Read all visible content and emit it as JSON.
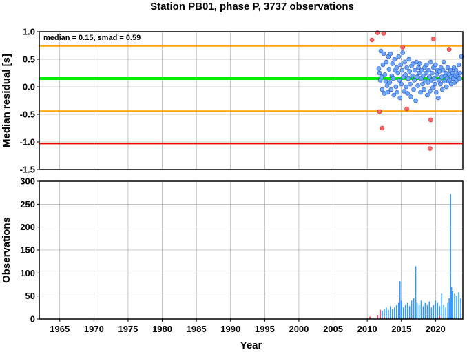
{
  "chart_data": [
    {
      "type": "scatter",
      "title": "Station PB01, phase P, 3737 observations",
      "xlabel": "",
      "ylabel": "Median residual [s]",
      "xlim": [
        1962,
        2024
      ],
      "ylim": [
        -1.5,
        1.0
      ],
      "x_ticks": [
        1965,
        1970,
        1975,
        1980,
        1985,
        1990,
        1995,
        2000,
        2005,
        2010,
        2015,
        2020
      ],
      "y_ticks": [
        -1.5,
        -1.0,
        -0.5,
        0.0,
        0.5,
        1.0
      ],
      "y_tick_labels": [
        "-1.5",
        "-1.0",
        "-0.5",
        "0.0",
        "0.5",
        "1.0"
      ],
      "grid": true,
      "annotation": "median = 0.15, smad = 0.59",
      "reference_lines": [
        {
          "role": "median",
          "value": 0.15,
          "color": "#00ee00"
        },
        {
          "role": "upper-limit",
          "value": 0.74,
          "color": "#ffa500"
        },
        {
          "role": "lower-limit",
          "value": -0.44,
          "color": "#ffa500"
        },
        {
          "role": "outlier-limit",
          "value": -1.03,
          "color": "#ee0000"
        }
      ],
      "series": [
        {
          "color": "#6fa8ff",
          "points": [
            [
              2011.7,
              0.33
            ],
            [
              2011.8,
              0.25
            ],
            [
              2011.9,
              0.12
            ],
            [
              2012.0,
              0.65
            ],
            [
              2012.1,
              0.18
            ],
            [
              2012.2,
              -0.05
            ],
            [
              2012.3,
              0.4
            ],
            [
              2012.4,
              0.6
            ],
            [
              2012.5,
              -0.12
            ],
            [
              2012.6,
              0.22
            ],
            [
              2012.7,
              0.1
            ],
            [
              2012.8,
              0.45
            ],
            [
              2012.9,
              0.02
            ],
            [
              2013.0,
              -0.1
            ],
            [
              2013.1,
              0.55
            ],
            [
              2013.2,
              0.32
            ],
            [
              2013.3,
              0.08
            ],
            [
              2013.4,
              0.6
            ],
            [
              2013.5,
              -0.05
            ],
            [
              2013.6,
              0.2
            ],
            [
              2013.7,
              0.42
            ],
            [
              2013.8,
              0.15
            ],
            [
              2013.9,
              -0.15
            ],
            [
              2014.0,
              0.5
            ],
            [
              2014.1,
              0.3
            ],
            [
              2014.2,
              0.0
            ],
            [
              2014.3,
              0.35
            ],
            [
              2014.4,
              -0.1
            ],
            [
              2014.5,
              0.25
            ],
            [
              2014.6,
              0.55
            ],
            [
              2014.7,
              0.12
            ],
            [
              2014.8,
              -0.2
            ],
            [
              2014.9,
              0.4
            ],
            [
              2015.0,
              0.05
            ],
            [
              2015.1,
              0.3
            ],
            [
              2015.2,
              0.62
            ],
            [
              2015.3,
              0.18
            ],
            [
              2015.4,
              -0.08
            ],
            [
              2015.5,
              0.45
            ],
            [
              2015.6,
              0.22
            ],
            [
              2015.7,
              0.0
            ],
            [
              2015.8,
              0.35
            ],
            [
              2015.9,
              -0.12
            ],
            [
              2016.0,
              0.15
            ],
            [
              2016.1,
              0.5
            ],
            [
              2016.2,
              0.28
            ],
            [
              2016.3,
              0.05
            ],
            [
              2016.4,
              -0.18
            ],
            [
              2016.5,
              0.38
            ],
            [
              2016.6,
              0.2
            ],
            [
              2016.7,
              0.42
            ],
            [
              2016.8,
              -0.05
            ],
            [
              2016.9,
              0.12
            ],
            [
              2017.0,
              0.3
            ],
            [
              2017.1,
              -0.25
            ],
            [
              2017.2,
              0.45
            ],
            [
              2017.3,
              0.18
            ],
            [
              2017.4,
              0.02
            ],
            [
              2017.5,
              0.35
            ],
            [
              2017.6,
              0.25
            ],
            [
              2017.7,
              0.42
            ],
            [
              2017.8,
              -0.1
            ],
            [
              2017.9,
              0.15
            ],
            [
              2018.0,
              0.3
            ],
            [
              2018.1,
              0.05
            ],
            [
              2018.2,
              0.2
            ],
            [
              2018.3,
              -0.05
            ],
            [
              2018.4,
              0.35
            ],
            [
              2018.5,
              0.1
            ],
            [
              2018.6,
              0.25
            ],
            [
              2018.7,
              0.4
            ],
            [
              2018.8,
              -0.15
            ],
            [
              2018.9,
              0.08
            ],
            [
              2019.0,
              0.3
            ],
            [
              2019.1,
              0.18
            ],
            [
              2019.2,
              -0.08
            ],
            [
              2019.3,
              0.45
            ],
            [
              2019.4,
              0.12
            ],
            [
              2019.5,
              0.25
            ],
            [
              2019.6,
              -0.02
            ],
            [
              2019.7,
              0.35
            ],
            [
              2019.8,
              0.15
            ],
            [
              2019.9,
              0.05
            ],
            [
              2020.0,
              0.4
            ],
            [
              2020.1,
              -0.1
            ],
            [
              2020.2,
              0.22
            ],
            [
              2020.3,
              0.3
            ],
            [
              2020.4,
              -0.2
            ],
            [
              2020.5,
              0.12
            ],
            [
              2020.6,
              0.28
            ],
            [
              2020.7,
              0.05
            ],
            [
              2020.8,
              0.35
            ],
            [
              2020.9,
              0.18
            ],
            [
              2021.0,
              -0.05
            ],
            [
              2021.1,
              0.3
            ],
            [
              2021.2,
              0.45
            ],
            [
              2021.3,
              0.1
            ],
            [
              2021.4,
              0.2
            ],
            [
              2021.5,
              0.25
            ],
            [
              2021.6,
              0.0
            ],
            [
              2021.7,
              0.15
            ],
            [
              2021.8,
              0.35
            ],
            [
              2021.9,
              0.1
            ],
            [
              2022.0,
              0.22
            ],
            [
              2022.1,
              0.12
            ],
            [
              2022.2,
              0.3
            ],
            [
              2022.3,
              0.05
            ],
            [
              2022.4,
              0.18
            ],
            [
              2022.5,
              0.25
            ],
            [
              2022.6,
              0.15
            ],
            [
              2022.7,
              0.35
            ],
            [
              2022.8,
              0.08
            ],
            [
              2022.9,
              0.2
            ],
            [
              2023.0,
              0.3
            ],
            [
              2023.1,
              0.12
            ],
            [
              2023.2,
              0.22
            ],
            [
              2023.3,
              0.18
            ],
            [
              2023.4,
              0.4
            ],
            [
              2023.5,
              0.15
            ],
            [
              2023.6,
              0.25
            ],
            [
              2023.8,
              0.55
            ]
          ]
        },
        {
          "color": "#ff6666",
          "points": [
            [
              2010.7,
              0.85
            ],
            [
              2011.5,
              0.98
            ],
            [
              2011.8,
              -0.45
            ],
            [
              2012.2,
              -0.75
            ],
            [
              2012.4,
              0.97
            ],
            [
              2015.2,
              0.72
            ],
            [
              2015.8,
              -0.4
            ],
            [
              2019.3,
              -0.6
            ],
            [
              2019.2,
              -1.12
            ],
            [
              2019.7,
              0.87
            ],
            [
              2022.0,
              0.68
            ]
          ]
        }
      ]
    },
    {
      "type": "bar",
      "xlabel": "Year",
      "ylabel": "Observations",
      "xlim": [
        1962,
        2024
      ],
      "ylim": [
        0,
        300
      ],
      "x_ticks": [
        1965,
        1970,
        1975,
        1980,
        1985,
        1990,
        1995,
        2000,
        2005,
        2010,
        2015,
        2020
      ],
      "y_ticks": [
        0,
        50,
        100,
        150,
        200,
        250,
        300
      ],
      "grid": true,
      "series": [
        {
          "color": "#3399ff",
          "x": [
            2011.9,
            2012.2,
            2012.5,
            2012.8,
            2013.1,
            2013.4,
            2013.7,
            2014.0,
            2014.3,
            2014.6,
            2014.8,
            2015.0,
            2015.3,
            2015.6,
            2015.9,
            2016.2,
            2016.5,
            2016.8,
            2017.1,
            2017.3,
            2017.6,
            2017.9,
            2018.2,
            2018.5,
            2018.8,
            2019.1,
            2019.4,
            2019.7,
            2020.0,
            2020.3,
            2020.6,
            2020.9,
            2021.2,
            2021.5,
            2021.8,
            2022.0,
            2022.2,
            2022.35,
            2022.5,
            2022.8,
            2023.1,
            2023.4,
            2023.7
          ],
          "values": [
            20,
            18,
            22,
            25,
            20,
            28,
            22,
            25,
            30,
            35,
            82,
            40,
            25,
            30,
            35,
            28,
            40,
            45,
            115,
            35,
            30,
            40,
            28,
            35,
            30,
            38,
            25,
            30,
            40,
            35,
            28,
            55,
            30,
            25,
            35,
            45,
            272,
            70,
            60,
            55,
            50,
            58,
            45
          ]
        },
        {
          "color": "#ff3333",
          "x": [
            2010.4,
            2011.5,
            2011.9,
            2012.5,
            2016.2,
            2020.6
          ],
          "values": [
            5,
            8,
            20,
            4,
            3,
            6
          ]
        }
      ]
    }
  ]
}
